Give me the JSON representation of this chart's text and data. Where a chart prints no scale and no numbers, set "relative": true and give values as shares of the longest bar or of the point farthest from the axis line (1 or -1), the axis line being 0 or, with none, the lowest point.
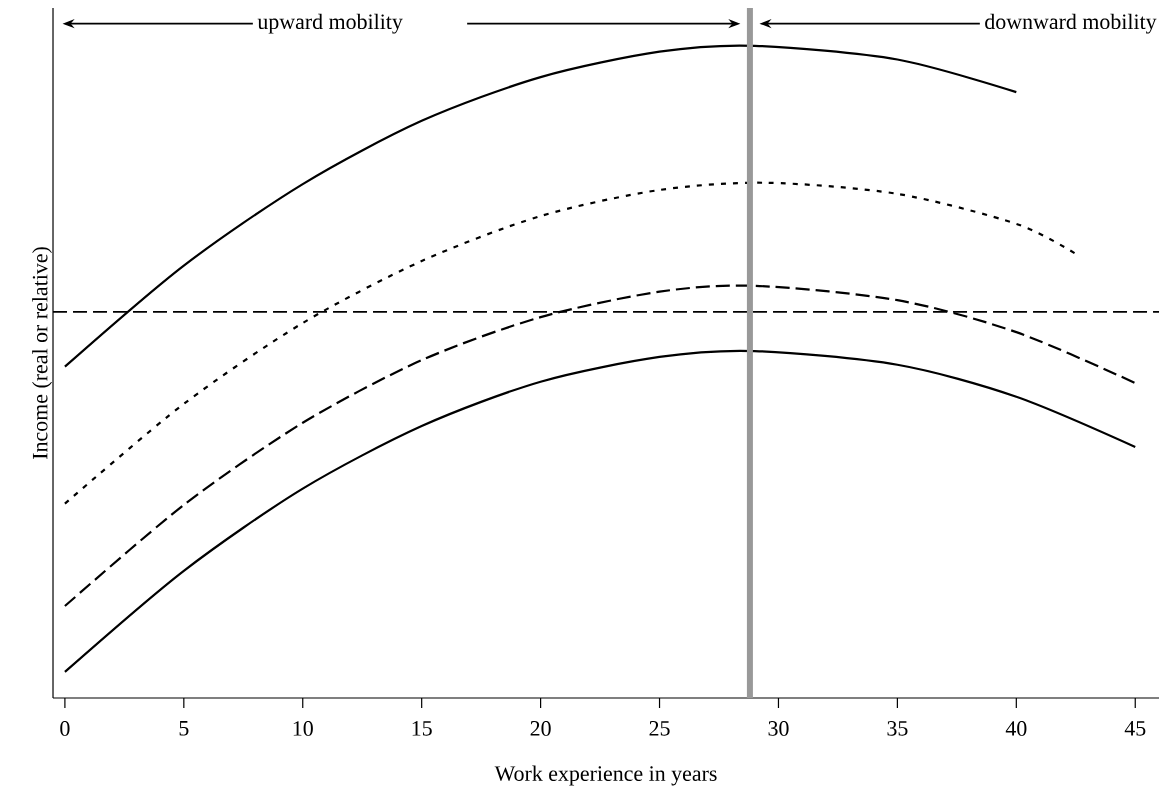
{
  "chart_data": {
    "type": "line",
    "relative": true,
    "xlabel": "Work experience in years",
    "ylabel": "Income (real or relative)",
    "xlim": [
      -0.5,
      46
    ],
    "xticks": [
      0,
      5,
      10,
      15,
      20,
      25,
      30,
      35,
      40,
      45
    ],
    "series": [
      {
        "color": "#000000",
        "line_style": "solid",
        "x": [
          0,
          5,
          10,
          15,
          20,
          25,
          29,
          35,
          40
        ],
        "values": [
          0.508,
          0.663,
          0.788,
          0.885,
          0.952,
          0.991,
          1,
          0.979,
          0.929
        ]
      },
      {
        "color": "#000000",
        "line_style": "dotted",
        "x": [
          0,
          5,
          10,
          15,
          20,
          25,
          29.5,
          35,
          40,
          42.5
        ],
        "values": [
          0.298,
          0.451,
          0.575,
          0.67,
          0.739,
          0.779,
          0.79,
          0.773,
          0.727,
          0.681
        ]
      },
      {
        "color": "#000000",
        "line_style": "dashed",
        "x": [
          0,
          5,
          10,
          15,
          20,
          25,
          29,
          35,
          40,
          45
        ],
        "values": [
          0.141,
          0.296,
          0.422,
          0.518,
          0.584,
          0.623,
          0.632,
          0.61,
          0.561,
          0.483
        ]
      },
      {
        "color": "#000000",
        "line_style": "solid",
        "x": [
          0,
          5,
          10,
          15,
          20,
          25,
          29,
          35,
          40,
          45
        ],
        "values": [
          0.04,
          0.195,
          0.321,
          0.417,
          0.485,
          0.523,
          0.532,
          0.511,
          0.462,
          0.385
        ]
      }
    ],
    "ref_lines": [
      {
        "axis": "y",
        "value": 0.592,
        "color": "#000000",
        "line_style": "dashed"
      },
      {
        "axis": "x",
        "value": 28.8,
        "color": "#999999",
        "line_style": "solid"
      }
    ],
    "annotations": [
      "upward mobility",
      "downward mobility"
    ],
    "grid": false,
    "marker": "none"
  }
}
